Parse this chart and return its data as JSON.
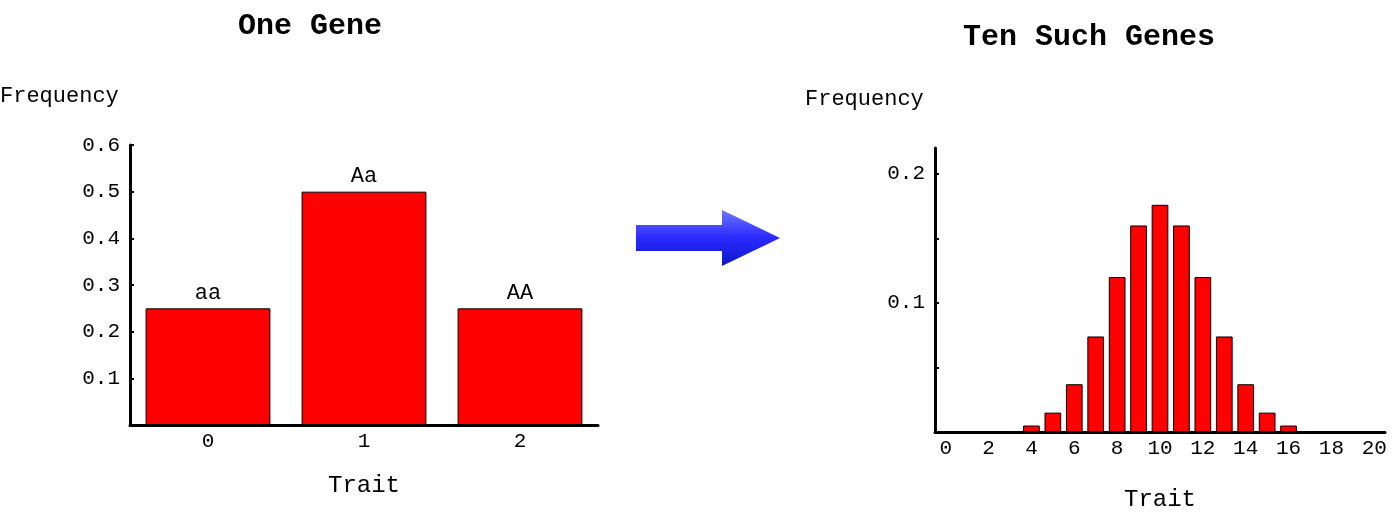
{
  "chart_data": [
    {
      "type": "bar",
      "title": "One Gene",
      "xlabel": "Trait",
      "ylabel": "Frequency",
      "categories": [
        "0",
        "1",
        "2"
      ],
      "values": [
        0.25,
        0.5,
        0.25
      ],
      "color": "#ff0000",
      "ylim": [
        0,
        0.6
      ],
      "yticks": [
        0.1,
        0.2,
        0.3,
        0.4,
        0.5,
        0.6
      ],
      "grid": false,
      "annotations": [
        {
          "text": "aa",
          "x": "0",
          "y": 0.25
        },
        {
          "text": "Aa",
          "x": "1",
          "y": 0.5
        },
        {
          "text": "AA",
          "x": "2",
          "y": 0.25
        }
      ]
    },
    {
      "type": "bar",
      "title": "Ten Such Genes",
      "xlabel": "Trait",
      "ylabel": "Frequency",
      "categories": [
        "0",
        null,
        "2",
        null,
        "4",
        null,
        "6",
        null,
        "8",
        null,
        "10",
        null,
        "12",
        null,
        "14",
        null,
        "16",
        null,
        "18",
        null,
        "20"
      ],
      "values": [
        0,
        0,
        0,
        0,
        0.005,
        0.015,
        0.037,
        0.074,
        0.12,
        0.16,
        0.176,
        0.16,
        0.12,
        0.074,
        0.037,
        0.015,
        0.005,
        0,
        0,
        0,
        0
      ],
      "color": "#ff0000",
      "ylim": [
        0,
        0.22
      ],
      "yticks": [
        {
          "value": 0.05,
          "label": null
        },
        0.1,
        {
          "value": 0.15,
          "label": null
        },
        0.2
      ],
      "grid": false
    }
  ]
}
